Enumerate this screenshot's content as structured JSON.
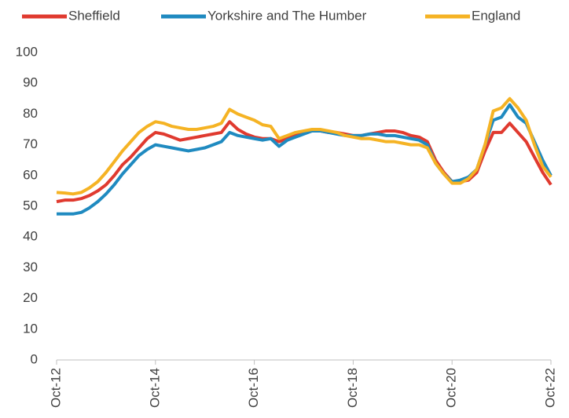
{
  "chart_data": {
    "type": "line",
    "categories": [
      "Oct-12",
      null,
      null,
      null,
      null,
      null,
      null,
      null,
      null,
      null,
      null,
      null,
      "Oct-14",
      null,
      null,
      null,
      null,
      null,
      null,
      null,
      null,
      null,
      null,
      null,
      "Oct-16",
      null,
      null,
      null,
      null,
      null,
      null,
      null,
      null,
      null,
      null,
      null,
      "Oct-18",
      null,
      null,
      null,
      null,
      null,
      null,
      null,
      null,
      null,
      null,
      null,
      "Oct-20",
      null,
      null,
      null,
      null,
      null,
      null,
      null,
      null,
      null,
      null,
      null,
      "Oct-22"
    ],
    "series": [
      {
        "name": "Sheffield",
        "color": "#e03a2f",
        "values": [
          51.5,
          52,
          52,
          52.5,
          53.5,
          55,
          57,
          60,
          63.5,
          66,
          69,
          72,
          74,
          73.5,
          72.5,
          71.5,
          72,
          72.5,
          73,
          73.5,
          74,
          77.5,
          75,
          73.5,
          72.5,
          72,
          72,
          71,
          72,
          73,
          74,
          74.5,
          74.5,
          74,
          74,
          73.5,
          73,
          73,
          73.5,
          74,
          74.5,
          74.5,
          74,
          73,
          72.5,
          71,
          65,
          61,
          58,
          58,
          58.5,
          61,
          68,
          74,
          74,
          77,
          74,
          71,
          66,
          61,
          57
        ]
      },
      {
        "name": "Yorkshire and The Humber",
        "color": "#1f8ac0",
        "values": [
          47.5,
          47.5,
          47.5,
          48,
          49.5,
          51.5,
          54,
          57,
          60.5,
          63.5,
          66.5,
          68.5,
          70,
          69.5,
          69,
          68.5,
          68,
          68.5,
          69,
          70,
          71,
          74,
          73,
          72.5,
          72,
          71.5,
          72,
          69.5,
          71.5,
          72.5,
          73.5,
          74.5,
          74.5,
          74,
          73.5,
          73,
          73,
          73,
          73.5,
          73.5,
          73,
          73,
          72.5,
          72,
          71.5,
          70,
          64,
          60.5,
          58,
          58.5,
          59.5,
          62,
          70,
          78,
          79,
          83,
          79,
          77,
          71,
          65,
          60
        ]
      },
      {
        "name": "England",
        "color": "#f5b324",
        "values": [
          54.5,
          54.3,
          54,
          54.5,
          56,
          58,
          61,
          64.5,
          68,
          71,
          74,
          76,
          77.5,
          77,
          76,
          75.5,
          75,
          75,
          75.5,
          76,
          77,
          81.5,
          80,
          79,
          78,
          76.5,
          76,
          72,
          73,
          74,
          74.5,
          75,
          75,
          74.5,
          74,
          73,
          72.5,
          72,
          72,
          71.5,
          71,
          71,
          70.5,
          70,
          70,
          69,
          64,
          60.5,
          57.5,
          57.5,
          59,
          62,
          70,
          81,
          82,
          85,
          82,
          78,
          70,
          63,
          59.5
        ]
      }
    ],
    "ylim": [
      0,
      100
    ],
    "yticks": [
      0,
      10,
      20,
      30,
      40,
      50,
      60,
      70,
      80,
      90,
      100
    ]
  }
}
